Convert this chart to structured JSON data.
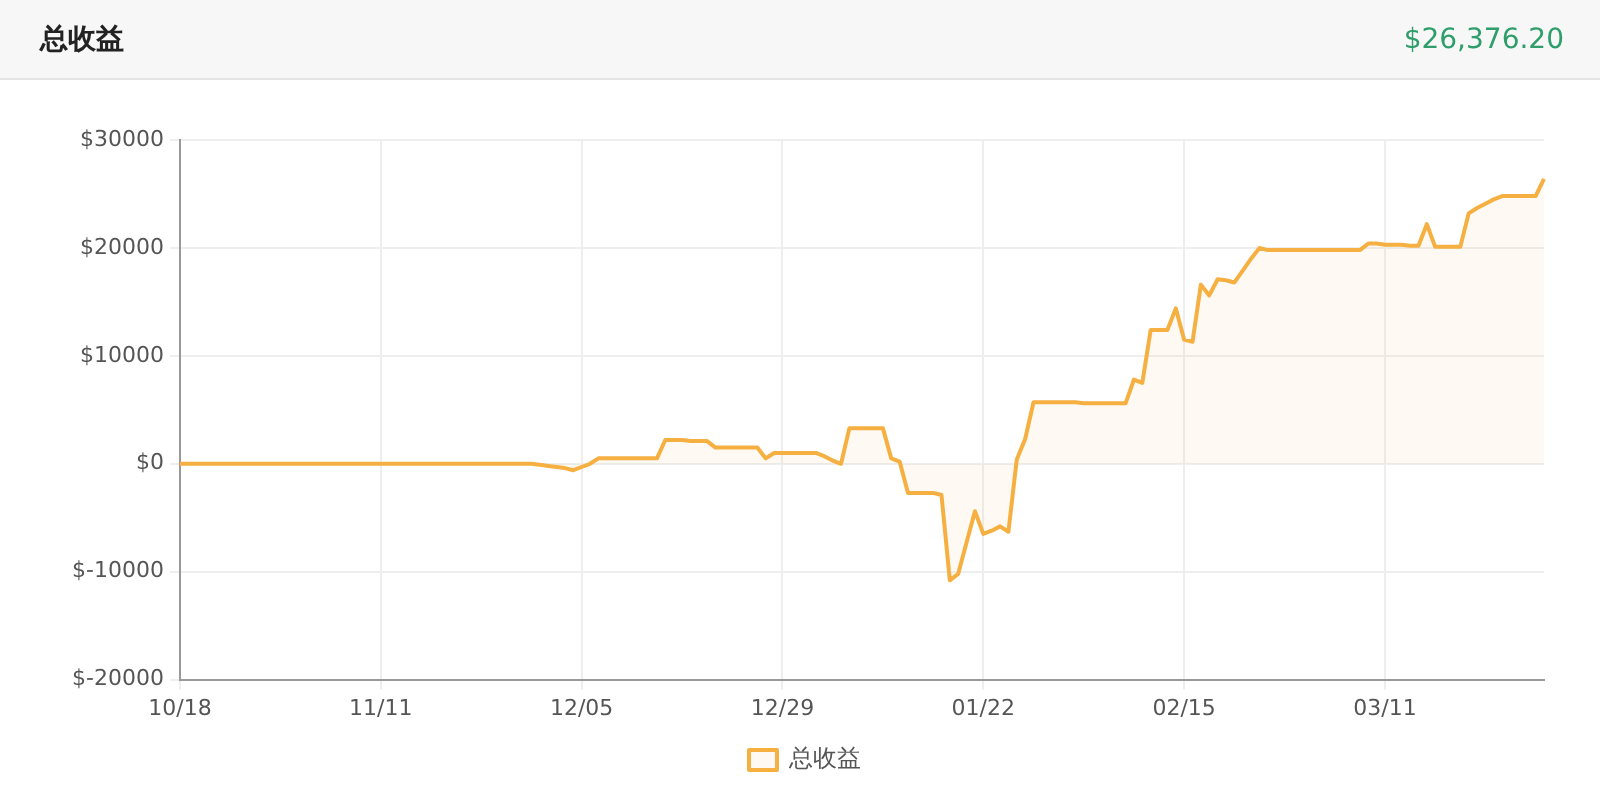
{
  "chart_data": {
    "type": "area",
    "title": "总收益",
    "subtitle": "$26,376.20",
    "categories": [
      "10/18",
      null,
      null,
      null,
      null,
      null,
      null,
      null,
      null,
      null,
      null,
      null,
      null,
      null,
      null,
      null,
      null,
      null,
      null,
      null,
      null,
      null,
      null,
      null,
      "11/11",
      null,
      null,
      null,
      null,
      null,
      null,
      null,
      null,
      null,
      null,
      null,
      null,
      null,
      null,
      null,
      null,
      null,
      null,
      null,
      null,
      null,
      null,
      null,
      "12/05",
      null,
      null,
      null,
      null,
      null,
      null,
      null,
      null,
      null,
      null,
      null,
      null,
      null,
      null,
      null,
      null,
      null,
      null,
      null,
      null,
      null,
      null,
      null,
      "12/29",
      null,
      null,
      null,
      null,
      null,
      null,
      null,
      null,
      null,
      null,
      null,
      null,
      null,
      null,
      null,
      null,
      null,
      null,
      null,
      null,
      null,
      null,
      null,
      "01/22",
      null,
      null,
      null,
      null,
      null,
      null,
      null,
      null,
      null,
      null,
      null,
      null,
      null,
      null,
      null,
      null,
      null,
      null,
      null,
      null,
      null,
      null,
      null,
      "02/15",
      null,
      null,
      null,
      null,
      null,
      null,
      null,
      null,
      null,
      null,
      null,
      null,
      null,
      null,
      null,
      null,
      null,
      null,
      null,
      null,
      null,
      null,
      null,
      "03/11",
      null,
      null,
      null,
      null,
      null,
      null,
      null,
      null,
      null,
      null,
      null,
      null,
      null,
      null,
      null,
      null,
      null,
      null,
      null
    ],
    "series": [
      {
        "name": "总收益",
        "color": "#f5b041",
        "values": [
          0,
          0,
          0,
          0,
          0,
          0,
          0,
          0,
          0,
          0,
          0,
          0,
          0,
          0,
          0,
          0,
          0,
          0,
          0,
          0,
          0,
          0,
          0,
          0,
          0,
          0,
          0,
          0,
          0,
          0,
          0,
          0,
          0,
          0,
          0,
          0,
          0,
          0,
          0,
          0,
          0,
          0,
          0,
          -100,
          -200,
          -300,
          -400,
          -600,
          -300,
          0,
          500,
          500,
          500,
          500,
          500,
          500,
          500,
          500,
          2200,
          2200,
          2200,
          2100,
          2100,
          2100,
          1500,
          1500,
          1500,
          1500,
          1500,
          1500,
          500,
          1000,
          1000,
          1000,
          1000,
          1000,
          1000,
          700,
          300,
          0,
          3300,
          3300,
          3300,
          3300,
          3300,
          500,
          200,
          -2700,
          -2700,
          -2700,
          -2700,
          -2900,
          -10800,
          -10200,
          -7300,
          -4400,
          -6500,
          -6200,
          -5800,
          -6300,
          400,
          2300,
          5700,
          5700,
          5700,
          5700,
          5700,
          5700,
          5600,
          5600,
          5600,
          5600,
          5600,
          5600,
          7800,
          7500,
          12400,
          12400,
          12400,
          14400,
          11500,
          11300,
          16600,
          15600,
          17100,
          17000,
          16800,
          17900,
          19000,
          20000,
          19800,
          19800,
          19800,
          19800,
          19800,
          19800,
          19800,
          19800,
          19800,
          19800,
          19800,
          19800,
          20400,
          20400,
          20300,
          20300,
          20300,
          20200,
          20200,
          22200,
          20100,
          20100,
          20100,
          20100,
          23200,
          23700,
          24100,
          24500,
          24800,
          24800,
          24800,
          24800,
          24800,
          26400
        ]
      }
    ],
    "ylim": [
      -20000,
      30000
    ],
    "yticks": [
      {
        "value": -20000,
        "label": "$-20000"
      },
      {
        "value": -10000,
        "label": "$-10000"
      },
      {
        "value": 0,
        "label": "$0"
      },
      {
        "value": 10000,
        "label": "$10000"
      },
      {
        "value": 20000,
        "label": "$20000"
      },
      {
        "value": 30000,
        "label": "$30000"
      }
    ],
    "grid": true,
    "legend": "bottom",
    "marker": "none",
    "line_style": "solid"
  }
}
